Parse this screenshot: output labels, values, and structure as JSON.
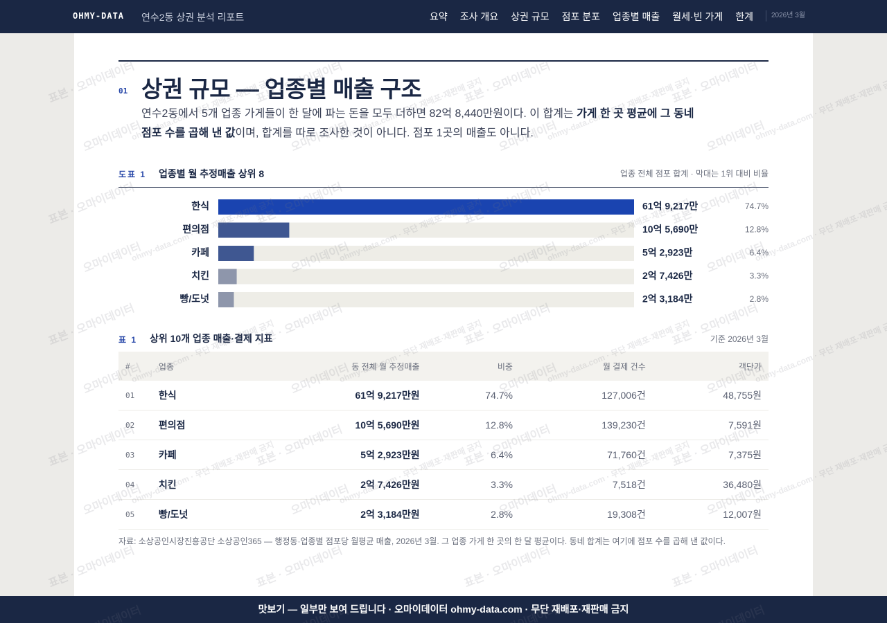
{
  "nav": {
    "brand": "OHMY-DATA",
    "subtitle": "연수2동 상권 분석 리포트",
    "items": [
      "요약",
      "조사 개요",
      "상권 규모",
      "점포 분포",
      "업종별 매출",
      "월세·빈 가게",
      "한계"
    ],
    "date": "2026년 3월"
  },
  "section": {
    "number": "01",
    "title": "상권 규모 — 업종별 매출 구조",
    "intro": [
      {
        "text": "연수2동에서 5개 업종 가게들이 한 달에 파는 돈을 모두 더하면 82억 8,440만원이다. 이 합계는 ",
        "bold": false
      },
      {
        "text": "가게 한 곳 평균에 그 동네 점포 수를 곱해 낸 값",
        "bold": true
      },
      {
        "text": "이며, 합계를 따로 조사한 것이 아니다. 점포 1곳의 매출도 아니다.",
        "bold": false
      }
    ]
  },
  "figure": {
    "label": "도표 1",
    "title": "업종별 월 추정매출 상위 8",
    "note": "업종 전체 점포 합계 · 막대는 1위 대비 비율"
  },
  "chart_data": {
    "type": "bar",
    "orientation": "horizontal",
    "categories": [
      "한식",
      "편의점",
      "카페",
      "치킨",
      "빵/도넛"
    ],
    "values": [
      619217,
      105690,
      52923,
      27426,
      23184
    ],
    "value_labels": [
      "61억 9,217만",
      "10억 5,690만",
      "5억 2,923만",
      "2억 7,426만",
      "2억 3,184만"
    ],
    "colors": [
      "#1a44b0",
      "#3f5791",
      "#3f5791",
      "#8e96ab",
      "#8e96ab"
    ],
    "track_color": "#eeede7",
    "xlim": [
      0,
      619217
    ],
    "grid": false,
    "shares": {
      "values": [
        74.7,
        12.8,
        6.4,
        3.3,
        2.8
      ],
      "value_labels": [
        "74.7%",
        "12.8%",
        "6.4%",
        "3.3%",
        "2.8%"
      ]
    }
  },
  "table": {
    "label": "표 1",
    "title": "상위 10개 업종 매출·결제 지표",
    "note": "기준 2026년 3월",
    "columns": [
      "#",
      "업종",
      "동 전체 월 추정매출",
      "비중",
      "월 결제 건수",
      "객단가"
    ],
    "rows": [
      [
        "01",
        "한식",
        "61억 9,217만원",
        "74.7%",
        "127,006건",
        "48,755원"
      ],
      [
        "02",
        "편의점",
        "10억 5,690만원",
        "12.8%",
        "139,230건",
        "7,591원"
      ],
      [
        "03",
        "카페",
        "5억 2,923만원",
        "6.4%",
        "71,760건",
        "7,375원"
      ],
      [
        "04",
        "치킨",
        "2억 7,426만원",
        "3.3%",
        "7,518건",
        "36,480원"
      ],
      [
        "05",
        "빵/도넛",
        "2억 3,184만원",
        "2.8%",
        "19,308건",
        "12,007원"
      ]
    ]
  },
  "source": "자료: 소상공인시장진흥공단 소상공인365 — 행정동·업종별 점포당 월평균 매출, 2026년 3월. 그 업종 가게 한 곳의 한 달 평균이다. 동네 합계는 여기에 점포 수를 곱해 낸 값이다.",
  "footer": "맛보기 — 일부만 보여 드립니다 · 오마이데이터 ohmy-data.com · 무단 재배포·재판매 금지",
  "watermarks": [
    "표본 · 오마이데이터",
    "오마이데이터",
    "ohmy-data.com · 무단 재배포·재판매 금지"
  ]
}
